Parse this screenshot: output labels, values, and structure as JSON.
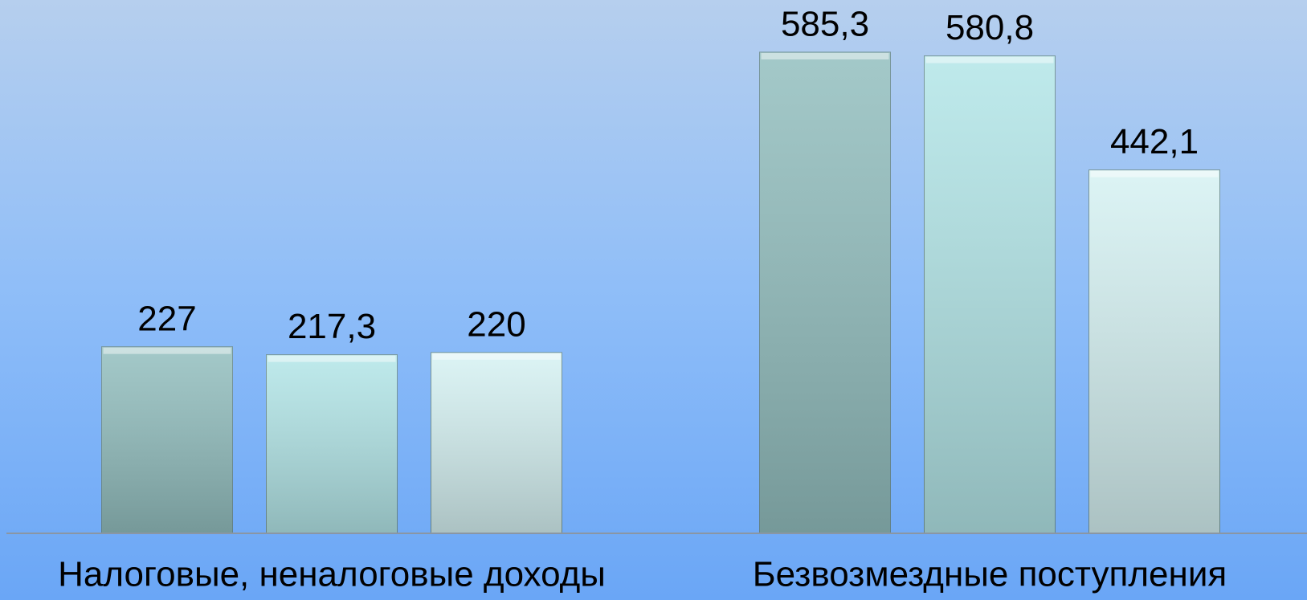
{
  "chart_data": {
    "type": "bar",
    "categories": [
      "Налоговые, неналоговые доходы",
      "Безвозмездные поступления"
    ],
    "series": [
      {
        "color": "#93bfbf",
        "values": [
          227,
          585.3
        ],
        "value_labels": [
          "227",
          "585,3"
        ]
      },
      {
        "color": "#b3e6e8",
        "values": [
          217.3,
          580.8
        ],
        "value_labels": [
          "217,3",
          "580,8"
        ]
      },
      {
        "color": "#d6f2f3",
        "values": [
          220,
          442.1
        ],
        "value_labels": [
          "220",
          "442,1"
        ]
      }
    ],
    "ylim": [
      0,
      640
    ]
  }
}
